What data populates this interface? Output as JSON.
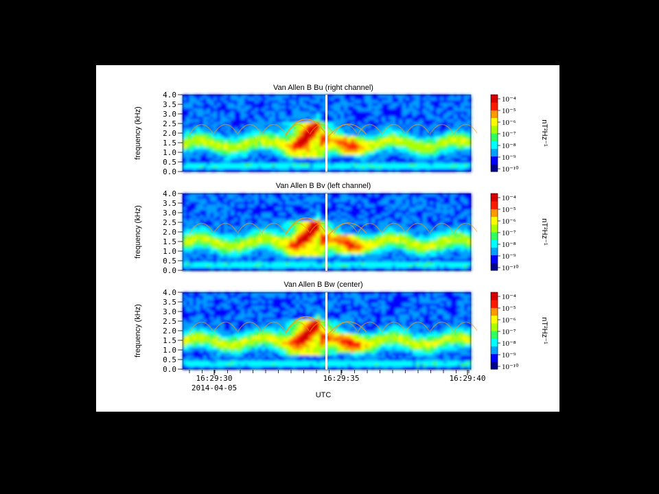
{
  "colors": {
    "background": "#000000",
    "figure": "#ffffff"
  },
  "colormap": [
    "#00008c",
    "#0000ff",
    "#00a0ff",
    "#00ffff",
    "#30ff60",
    "#aaff00",
    "#ffff00",
    "#ff9900",
    "#ff1a00",
    "#d40000"
  ],
  "chart_data": [
    {
      "type": "heatmap",
      "title": "Van Allen B Bu (right channel)",
      "ylabel": "frequency (kHz)",
      "ylim": [
        0,
        4
      ],
      "yticks": [
        "4.0",
        "3.5",
        "3.0",
        "2.5",
        "2.0",
        "1.5",
        "1.0",
        "0.5",
        "0.0"
      ],
      "colorbar": {
        "label": "nT²Hz⁻¹",
        "ticks": [
          "10⁻⁴",
          "10⁻⁵",
          "10⁻⁶",
          "10⁻⁷",
          "10⁻⁸",
          "10⁻⁹",
          "10⁻¹⁰"
        ]
      }
    },
    {
      "type": "heatmap",
      "title": "Van Allen B Bv (left channel)",
      "ylabel": "frequency (kHz)",
      "ylim": [
        0,
        4
      ],
      "yticks": [
        "4.0",
        "3.5",
        "3.0",
        "2.5",
        "2.0",
        "1.5",
        "1.0",
        "0.5",
        "0.0"
      ],
      "colorbar": {
        "label": "nT²Hz⁻¹",
        "ticks": [
          "10⁻⁴",
          "10⁻⁵",
          "10⁻⁶",
          "10⁻⁷",
          "10⁻⁸",
          "10⁻⁹",
          "10⁻¹⁰"
        ]
      }
    },
    {
      "type": "heatmap",
      "title": "Van Allen B Bw (center)",
      "ylabel": "frequency (kHz)",
      "ylim": [
        0,
        4
      ],
      "yticks": [
        "4.0",
        "3.5",
        "3.0",
        "2.5",
        "2.0",
        "1.5",
        "1.0",
        "0.5",
        "0.0"
      ],
      "colorbar": {
        "label": "nT²Hz⁻¹",
        "ticks": [
          "10⁻⁴",
          "10⁻⁵",
          "10⁻⁶",
          "10⁻⁷",
          "10⁻⁸",
          "10⁻⁹",
          "10⁻¹⁰"
        ]
      }
    }
  ],
  "xaxis": {
    "ticks": [
      "16:29:30",
      "16:29:35",
      "16:29:40"
    ],
    "date": "2014-04-05",
    "label": "UTC"
  }
}
